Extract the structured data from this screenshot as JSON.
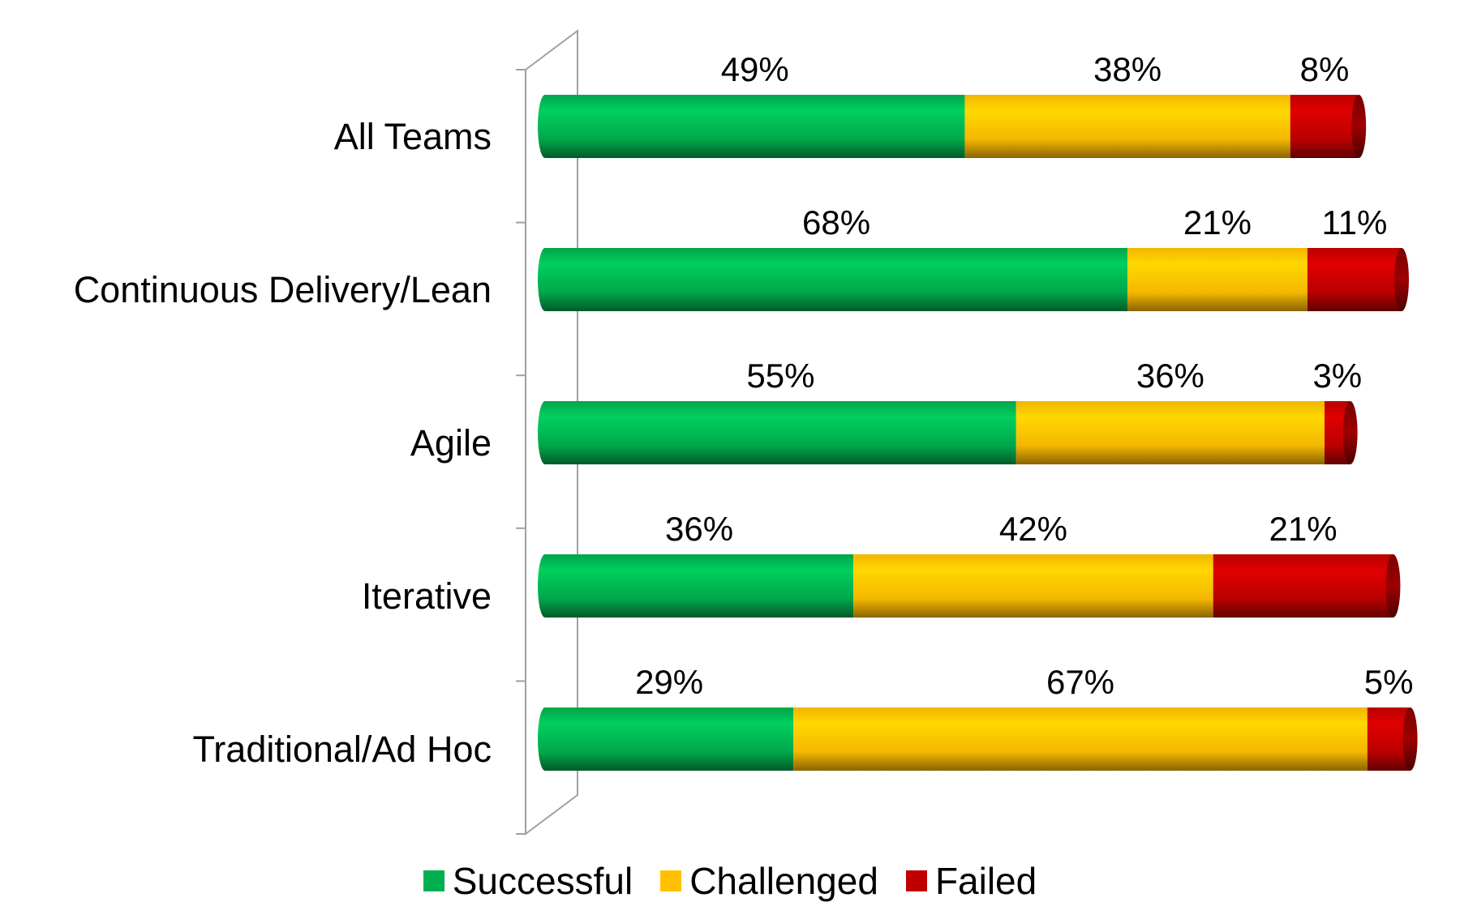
{
  "chart_data": {
    "type": "bar",
    "orientation": "horizontal",
    "stacked": true,
    "percent_stacked": true,
    "categories": [
      "All Teams",
      "Continuous Delivery/Lean",
      "Agile",
      "Iterative",
      "Traditional/Ad Hoc"
    ],
    "series": [
      {
        "name": "Successful",
        "color": "#00b050",
        "values": [
          49,
          68,
          55,
          36,
          29
        ],
        "labels": [
          "49%",
          "68%",
          "55%",
          "36%",
          "29%"
        ]
      },
      {
        "name": "Challenged",
        "color": "#ffc000",
        "values": [
          38,
          21,
          36,
          42,
          67
        ],
        "labels": [
          "38%",
          "21%",
          "36%",
          "42%",
          "67%"
        ]
      },
      {
        "name": "Failed",
        "color": "#c00000",
        "values": [
          8,
          11,
          3,
          21,
          5
        ],
        "labels": [
          "8%",
          "11%",
          "3%",
          "21%",
          "5%"
        ]
      }
    ],
    "legend_position": "bottom",
    "grid": false
  }
}
